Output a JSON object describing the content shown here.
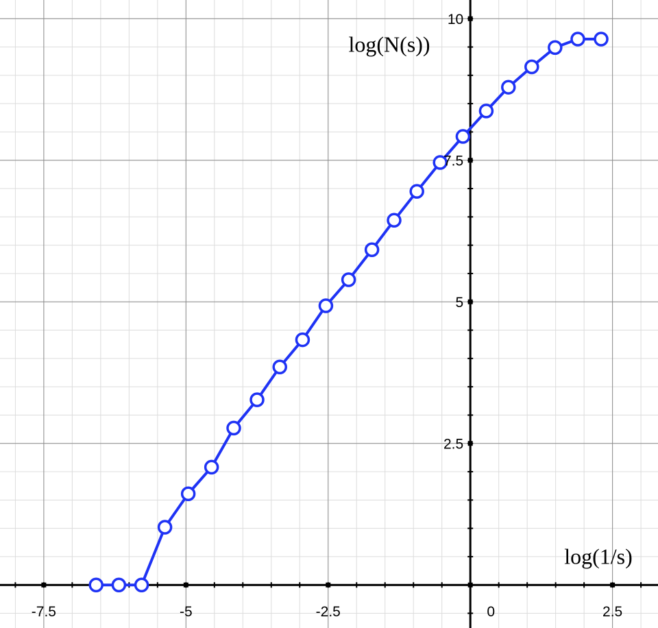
{
  "chart_data": {
    "type": "line",
    "x_label": "log(1/s)",
    "y_label": "log(N(s))",
    "x": [
      -6.58,
      -6.18,
      -5.78,
      -5.37,
      -4.96,
      -4.55,
      -4.16,
      -3.75,
      -3.35,
      -2.95,
      -2.54,
      -2.14,
      -1.73,
      -1.34,
      -0.94,
      -0.53,
      -0.13,
      0.28,
      0.67,
      1.08,
      1.49,
      1.89,
      2.3
    ],
    "series": [
      {
        "color": "#1f33f5",
        "values": [
          0,
          0,
          0,
          1.02,
          1.61,
          2.08,
          2.77,
          3.27,
          3.85,
          4.33,
          4.93,
          5.39,
          5.92,
          6.44,
          6.95,
          7.46,
          7.92,
          8.37,
          8.79,
          9.15,
          9.49,
          9.64,
          9.64
        ]
      }
    ],
    "xlim": [
      -8.27,
      3.3
    ],
    "ylim": [
      -0.76,
      10.33
    ],
    "xticks": [
      -7.5,
      -5,
      -2.5,
      0,
      2.5
    ],
    "yticks": [
      2.5,
      5,
      7.5,
      10
    ],
    "grid": true
  }
}
